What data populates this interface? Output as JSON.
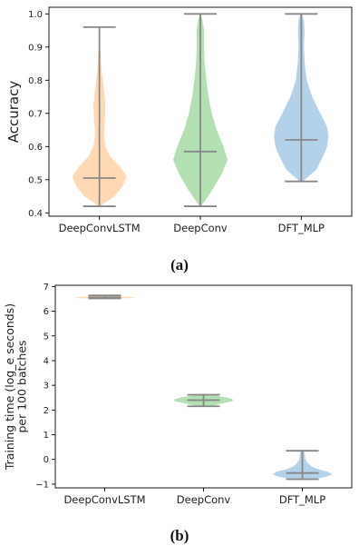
{
  "chart_data": [
    {
      "type": "violin",
      "caption": "(a)",
      "xlabel": "",
      "ylabel": "Accuracy",
      "ylim": [
        0.39,
        1.02
      ],
      "yticks": [
        0.4,
        0.5,
        0.6,
        0.7,
        0.8,
        0.9,
        1.0
      ],
      "ytick_labels": [
        "0.4",
        "0.5",
        "0.6",
        "0.7",
        "0.8",
        "0.9",
        "1.0"
      ],
      "categories": [
        "DeepConvLSTM",
        "DeepConv",
        "DFT_MLP"
      ],
      "colors": [
        "#ffcc99",
        "#99d699",
        "#99c2e0"
      ],
      "series": [
        {
          "min": 0.42,
          "median": 0.505,
          "max": 0.96,
          "density": [
            [
              0.42,
              0.02
            ],
            [
              0.45,
              0.55
            ],
            [
              0.48,
              0.85
            ],
            [
              0.51,
              1.0
            ],
            [
              0.54,
              0.75
            ],
            [
              0.57,
              0.4
            ],
            [
              0.6,
              0.22
            ],
            [
              0.64,
              0.16
            ],
            [
              0.68,
              0.2
            ],
            [
              0.72,
              0.22
            ],
            [
              0.76,
              0.18
            ],
            [
              0.8,
              0.12
            ],
            [
              0.84,
              0.07
            ],
            [
              0.9,
              0.03
            ],
            [
              0.96,
              0.01
            ]
          ]
        },
        {
          "min": 0.42,
          "median": 0.585,
          "max": 1.0,
          "density": [
            [
              0.42,
              0.03
            ],
            [
              0.47,
              0.45
            ],
            [
              0.52,
              0.8
            ],
            [
              0.56,
              1.0
            ],
            [
              0.6,
              0.85
            ],
            [
              0.65,
              0.6
            ],
            [
              0.7,
              0.42
            ],
            [
              0.75,
              0.3
            ],
            [
              0.8,
              0.22
            ],
            [
              0.85,
              0.16
            ],
            [
              0.9,
              0.13
            ],
            [
              0.95,
              0.14
            ],
            [
              0.98,
              0.08
            ],
            [
              1.0,
              0.02
            ]
          ]
        },
        {
          "min": 0.495,
          "median": 0.62,
          "max": 1.0,
          "density": [
            [
              0.495,
              0.05
            ],
            [
              0.53,
              0.55
            ],
            [
              0.57,
              0.8
            ],
            [
              0.6,
              0.95
            ],
            [
              0.63,
              1.0
            ],
            [
              0.66,
              0.95
            ],
            [
              0.7,
              0.7
            ],
            [
              0.75,
              0.4
            ],
            [
              0.8,
              0.2
            ],
            [
              0.85,
              0.13
            ],
            [
              0.9,
              0.1
            ],
            [
              0.95,
              0.12
            ],
            [
              0.98,
              0.1
            ],
            [
              1.0,
              0.03
            ]
          ]
        }
      ]
    },
    {
      "type": "violin",
      "caption": "(b)",
      "xlabel": "",
      "ylabel": "Training time (log_e seconds)\nper 100 batches",
      "ylabel_lines": [
        "Training time (log_e seconds)",
        "per 100 batches"
      ],
      "ylim": [
        -1.15,
        7.05
      ],
      "yticks": [
        -1,
        0,
        1,
        2,
        3,
        4,
        5,
        6,
        7
      ],
      "ytick_labels": [
        "−1",
        "0",
        "1",
        "2",
        "3",
        "4",
        "5",
        "6",
        "7"
      ],
      "categories": [
        "DeepConvLSTM",
        "DeepConv",
        "DFT_MLP"
      ],
      "colors": [
        "#ffcc99",
        "#99d699",
        "#99c2e0"
      ],
      "series": [
        {
          "min": 6.52,
          "median": 6.56,
          "max": 6.64,
          "density": [
            [
              6.5,
              0.1
            ],
            [
              6.53,
              0.9
            ],
            [
              6.56,
              1.0
            ],
            [
              6.6,
              0.6
            ],
            [
              6.64,
              0.1
            ]
          ]
        },
        {
          "min": 2.15,
          "median": 2.4,
          "max": 2.62,
          "density": [
            [
              2.15,
              0.25
            ],
            [
              2.25,
              0.55
            ],
            [
              2.35,
              0.95
            ],
            [
              2.42,
              1.0
            ],
            [
              2.5,
              0.8
            ],
            [
              2.58,
              0.45
            ],
            [
              2.62,
              0.15
            ]
          ]
        },
        {
          "min": -0.8,
          "median": -0.55,
          "max": 0.35,
          "density": [
            [
              -0.8,
              0.35
            ],
            [
              -0.7,
              0.8
            ],
            [
              -0.6,
              1.0
            ],
            [
              -0.5,
              0.85
            ],
            [
              -0.4,
              0.55
            ],
            [
              -0.3,
              0.32
            ],
            [
              -0.15,
              0.18
            ],
            [
              0.0,
              0.1
            ],
            [
              0.15,
              0.09
            ],
            [
              0.3,
              0.06
            ],
            [
              0.35,
              0.03
            ]
          ]
        }
      ]
    }
  ]
}
